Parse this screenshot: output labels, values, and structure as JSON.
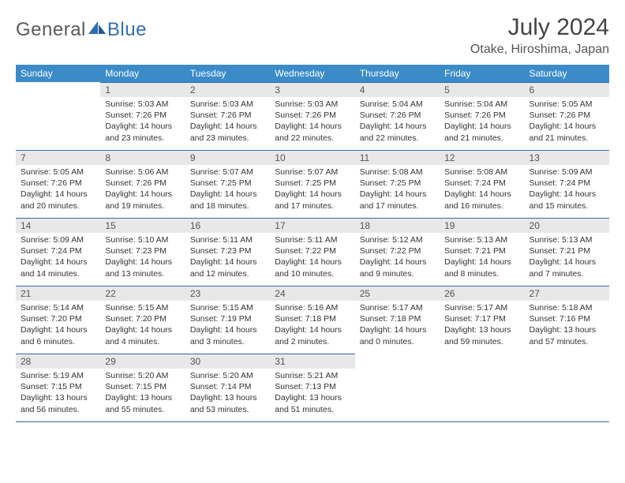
{
  "brand": {
    "part1": "General",
    "part2": "Blue"
  },
  "title": "July 2024",
  "location": "Otake, Hiroshima, Japan",
  "weekdays": [
    "Sunday",
    "Monday",
    "Tuesday",
    "Wednesday",
    "Thursday",
    "Friday",
    "Saturday"
  ],
  "colors": {
    "header_bg": "#3b8bc9",
    "header_text": "#ffffff",
    "daynum_bg": "#e8e8e8",
    "rule": "#2e6ca8",
    "logo_gray": "#5a5a5a",
    "logo_blue": "#2f6fb0"
  },
  "weeks": [
    [
      null,
      {
        "n": "1",
        "sr": "Sunrise: 5:03 AM",
        "ss": "Sunset: 7:26 PM",
        "d1": "Daylight: 14 hours",
        "d2": "and 23 minutes."
      },
      {
        "n": "2",
        "sr": "Sunrise: 5:03 AM",
        "ss": "Sunset: 7:26 PM",
        "d1": "Daylight: 14 hours",
        "d2": "and 23 minutes."
      },
      {
        "n": "3",
        "sr": "Sunrise: 5:03 AM",
        "ss": "Sunset: 7:26 PM",
        "d1": "Daylight: 14 hours",
        "d2": "and 22 minutes."
      },
      {
        "n": "4",
        "sr": "Sunrise: 5:04 AM",
        "ss": "Sunset: 7:26 PM",
        "d1": "Daylight: 14 hours",
        "d2": "and 22 minutes."
      },
      {
        "n": "5",
        "sr": "Sunrise: 5:04 AM",
        "ss": "Sunset: 7:26 PM",
        "d1": "Daylight: 14 hours",
        "d2": "and 21 minutes."
      },
      {
        "n": "6",
        "sr": "Sunrise: 5:05 AM",
        "ss": "Sunset: 7:26 PM",
        "d1": "Daylight: 14 hours",
        "d2": "and 21 minutes."
      }
    ],
    [
      {
        "n": "7",
        "sr": "Sunrise: 5:05 AM",
        "ss": "Sunset: 7:26 PM",
        "d1": "Daylight: 14 hours",
        "d2": "and 20 minutes."
      },
      {
        "n": "8",
        "sr": "Sunrise: 5:06 AM",
        "ss": "Sunset: 7:26 PM",
        "d1": "Daylight: 14 hours",
        "d2": "and 19 minutes."
      },
      {
        "n": "9",
        "sr": "Sunrise: 5:07 AM",
        "ss": "Sunset: 7:25 PM",
        "d1": "Daylight: 14 hours",
        "d2": "and 18 minutes."
      },
      {
        "n": "10",
        "sr": "Sunrise: 5:07 AM",
        "ss": "Sunset: 7:25 PM",
        "d1": "Daylight: 14 hours",
        "d2": "and 17 minutes."
      },
      {
        "n": "11",
        "sr": "Sunrise: 5:08 AM",
        "ss": "Sunset: 7:25 PM",
        "d1": "Daylight: 14 hours",
        "d2": "and 17 minutes."
      },
      {
        "n": "12",
        "sr": "Sunrise: 5:08 AM",
        "ss": "Sunset: 7:24 PM",
        "d1": "Daylight: 14 hours",
        "d2": "and 16 minutes."
      },
      {
        "n": "13",
        "sr": "Sunrise: 5:09 AM",
        "ss": "Sunset: 7:24 PM",
        "d1": "Daylight: 14 hours",
        "d2": "and 15 minutes."
      }
    ],
    [
      {
        "n": "14",
        "sr": "Sunrise: 5:09 AM",
        "ss": "Sunset: 7:24 PM",
        "d1": "Daylight: 14 hours",
        "d2": "and 14 minutes."
      },
      {
        "n": "15",
        "sr": "Sunrise: 5:10 AM",
        "ss": "Sunset: 7:23 PM",
        "d1": "Daylight: 14 hours",
        "d2": "and 13 minutes."
      },
      {
        "n": "16",
        "sr": "Sunrise: 5:11 AM",
        "ss": "Sunset: 7:23 PM",
        "d1": "Daylight: 14 hours",
        "d2": "and 12 minutes."
      },
      {
        "n": "17",
        "sr": "Sunrise: 5:11 AM",
        "ss": "Sunset: 7:22 PM",
        "d1": "Daylight: 14 hours",
        "d2": "and 10 minutes."
      },
      {
        "n": "18",
        "sr": "Sunrise: 5:12 AM",
        "ss": "Sunset: 7:22 PM",
        "d1": "Daylight: 14 hours",
        "d2": "and 9 minutes."
      },
      {
        "n": "19",
        "sr": "Sunrise: 5:13 AM",
        "ss": "Sunset: 7:21 PM",
        "d1": "Daylight: 14 hours",
        "d2": "and 8 minutes."
      },
      {
        "n": "20",
        "sr": "Sunrise: 5:13 AM",
        "ss": "Sunset: 7:21 PM",
        "d1": "Daylight: 14 hours",
        "d2": "and 7 minutes."
      }
    ],
    [
      {
        "n": "21",
        "sr": "Sunrise: 5:14 AM",
        "ss": "Sunset: 7:20 PM",
        "d1": "Daylight: 14 hours",
        "d2": "and 6 minutes."
      },
      {
        "n": "22",
        "sr": "Sunrise: 5:15 AM",
        "ss": "Sunset: 7:20 PM",
        "d1": "Daylight: 14 hours",
        "d2": "and 4 minutes."
      },
      {
        "n": "23",
        "sr": "Sunrise: 5:15 AM",
        "ss": "Sunset: 7:19 PM",
        "d1": "Daylight: 14 hours",
        "d2": "and 3 minutes."
      },
      {
        "n": "24",
        "sr": "Sunrise: 5:16 AM",
        "ss": "Sunset: 7:18 PM",
        "d1": "Daylight: 14 hours",
        "d2": "and 2 minutes."
      },
      {
        "n": "25",
        "sr": "Sunrise: 5:17 AM",
        "ss": "Sunset: 7:18 PM",
        "d1": "Daylight: 14 hours",
        "d2": "and 0 minutes."
      },
      {
        "n": "26",
        "sr": "Sunrise: 5:17 AM",
        "ss": "Sunset: 7:17 PM",
        "d1": "Daylight: 13 hours",
        "d2": "and 59 minutes."
      },
      {
        "n": "27",
        "sr": "Sunrise: 5:18 AM",
        "ss": "Sunset: 7:16 PM",
        "d1": "Daylight: 13 hours",
        "d2": "and 57 minutes."
      }
    ],
    [
      {
        "n": "28",
        "sr": "Sunrise: 5:19 AM",
        "ss": "Sunset: 7:15 PM",
        "d1": "Daylight: 13 hours",
        "d2": "and 56 minutes."
      },
      {
        "n": "29",
        "sr": "Sunrise: 5:20 AM",
        "ss": "Sunset: 7:15 PM",
        "d1": "Daylight: 13 hours",
        "d2": "and 55 minutes."
      },
      {
        "n": "30",
        "sr": "Sunrise: 5:20 AM",
        "ss": "Sunset: 7:14 PM",
        "d1": "Daylight: 13 hours",
        "d2": "and 53 minutes."
      },
      {
        "n": "31",
        "sr": "Sunrise: 5:21 AM",
        "ss": "Sunset: 7:13 PM",
        "d1": "Daylight: 13 hours",
        "d2": "and 51 minutes."
      },
      null,
      null,
      null
    ]
  ]
}
